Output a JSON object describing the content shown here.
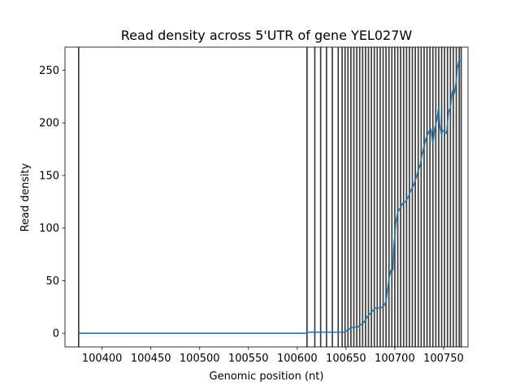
{
  "chart_data": {
    "type": "line",
    "title": "Read density across 5'UTR of gene YEL027W",
    "xlabel": "Genomic position (nt)",
    "ylabel": "Read density",
    "xlim": [
      100362,
      100775
    ],
    "ylim": [
      -13,
      272
    ],
    "x_ticks": [
      100400,
      100450,
      100500,
      100550,
      100600,
      100650,
      100700,
      100750
    ],
    "y_ticks": [
      0,
      50,
      100,
      150,
      200,
      250
    ],
    "grid": false,
    "legend": "none",
    "line_color": "#1f77b4",
    "vline_color": "#3c3c3c",
    "vlines": [
      100376,
      100610,
      100618,
      100624,
      100630,
      100636,
      100642,
      100646,
      100649,
      100652,
      100655,
      100658,
      100661,
      100664,
      100667,
      100670,
      100673,
      100676,
      100679,
      100682,
      100685,
      100688,
      100691,
      100694,
      100697,
      100700,
      100703,
      100706,
      100709,
      100712,
      100715,
      100718,
      100721,
      100724,
      100727,
      100730,
      100733,
      100736,
      100739,
      100742,
      100745,
      100748,
      100751,
      100754,
      100757,
      100760,
      100763,
      100766,
      100768
    ],
    "series": [
      {
        "x": [
          100376,
          100609,
          100610,
          100611,
          100640,
          100648,
          100650,
          100655,
          100660,
          100662,
          100665,
          100668,
          100670,
          100672,
          100675,
          100678,
          100680,
          100684,
          100688,
          100691,
          100694,
          100696,
          100698,
          100699,
          100701,
          100703,
          100706,
          100709,
          100711,
          100714,
          100716,
          100719,
          100722,
          100724,
          100726,
          100728,
          100730,
          100732,
          100735,
          100737,
          100739,
          100741,
          100743,
          100745,
          100746,
          100748,
          100749,
          100751,
          100753,
          100755,
          100757,
          100759,
          100761,
          100763,
          100764,
          100766,
          100768
        ],
        "y": [
          0,
          0,
          1,
          1,
          1,
          1,
          2,
          5,
          6,
          6,
          8,
          10,
          13,
          16,
          19,
          22,
          24,
          24,
          25,
          30,
          52,
          60,
          60,
          82,
          105,
          115,
          120,
          125,
          125,
          130,
          135,
          140,
          148,
          155,
          160,
          170,
          178,
          185,
          192,
          194,
          180,
          195,
          202,
          215,
          198,
          188,
          193,
          192,
          190,
          210,
          215,
          230,
          228,
          240,
          252,
          260,
          258
        ]
      }
    ]
  }
}
